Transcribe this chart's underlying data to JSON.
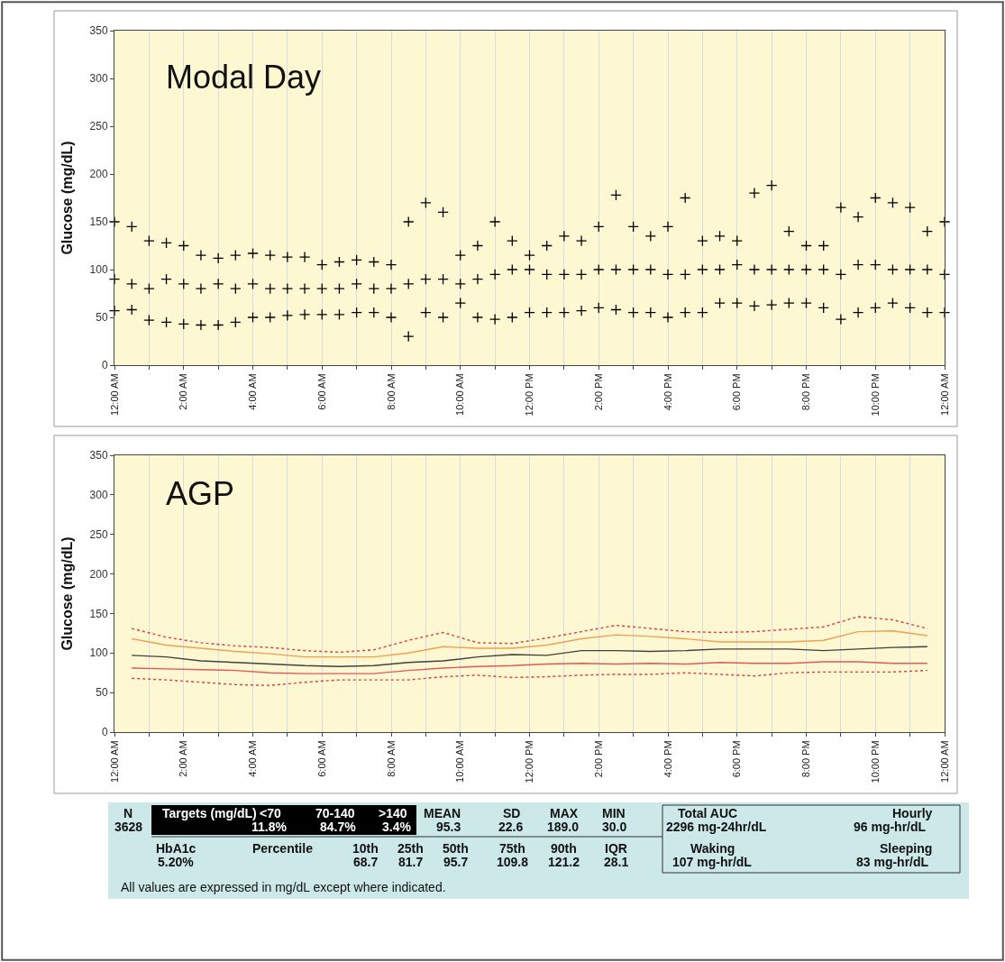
{
  "chart_data": [
    {
      "type": "scatter",
      "title": "Modal Day",
      "ylabel": "Glucose (mg/dL)",
      "marker": "cross",
      "grid": "x",
      "xlim": [
        0,
        24
      ],
      "ylim": [
        0,
        350
      ],
      "yticks": [
        0,
        50,
        100,
        150,
        200,
        250,
        300,
        350
      ],
      "xticks": [
        {
          "value": 0,
          "label": "12:00 AM"
        },
        {
          "value": 1,
          "label": null
        },
        {
          "value": 2,
          "label": "2:00 AM"
        },
        {
          "value": 3,
          "label": null
        },
        {
          "value": 4,
          "label": "4:00 AM"
        },
        {
          "value": 5,
          "label": null
        },
        {
          "value": 6,
          "label": "6:00 AM"
        },
        {
          "value": 7,
          "label": null
        },
        {
          "value": 8,
          "label": "8:00 AM"
        },
        {
          "value": 9,
          "label": null
        },
        {
          "value": 10,
          "label": "10:00 AM"
        },
        {
          "value": 11,
          "label": null
        },
        {
          "value": 12,
          "label": "12:00 PM"
        },
        {
          "value": 13,
          "label": null
        },
        {
          "value": 14,
          "label": "2:00 PM"
        },
        {
          "value": 15,
          "label": null
        },
        {
          "value": 16,
          "label": "4:00 PM"
        },
        {
          "value": 17,
          "label": null
        },
        {
          "value": 18,
          "label": "6:00 PM"
        },
        {
          "value": 19,
          "label": null
        },
        {
          "value": 20,
          "label": "8:00 PM"
        },
        {
          "value": 21,
          "label": null
        },
        {
          "value": 22,
          "label": "10:00 PM"
        },
        {
          "value": 23,
          "label": null
        },
        {
          "value": 24,
          "label": "12:00 AM"
        }
      ],
      "series": [
        {
          "color": "#000000",
          "x": [
            0,
            0,
            0,
            0.5,
            0.5,
            0.5,
            1,
            1,
            1,
            1.5,
            1.5,
            1.5,
            2,
            2,
            2,
            2.5,
            2.5,
            2.5,
            3,
            3,
            3,
            3.5,
            3.5,
            3.5,
            4,
            4,
            4,
            4.5,
            4.5,
            4.5,
            5,
            5,
            5,
            5.5,
            5.5,
            5.5,
            6,
            6,
            6,
            6.5,
            6.5,
            6.5,
            7,
            7,
            7,
            7.5,
            7.5,
            7.5,
            8,
            8,
            8,
            8.5,
            8.5,
            8.5,
            9,
            9,
            9,
            9.5,
            9.5,
            9.5,
            10,
            10,
            10,
            10.5,
            10.5,
            10.5,
            11,
            11,
            11,
            11.5,
            11.5,
            11.5,
            12,
            12,
            12,
            12.5,
            12.5,
            12.5,
            13,
            13,
            13,
            13.5,
            13.5,
            13.5,
            14,
            14,
            14,
            14.5,
            14.5,
            14.5,
            15,
            15,
            15,
            15.5,
            15.5,
            15.5,
            16,
            16,
            16,
            16.5,
            16.5,
            16.5,
            17,
            17,
            17,
            17.5,
            17.5,
            17.5,
            18,
            18,
            18,
            18.5,
            18.5,
            18.5,
            19,
            19,
            19,
            19.5,
            19.5,
            19.5,
            20,
            20,
            20,
            20.5,
            20.5,
            20.5,
            21,
            21,
            21,
            21.5,
            21.5,
            21.5,
            22,
            22,
            22,
            22.5,
            22.5,
            22.5,
            23,
            23,
            23,
            23.5,
            23.5,
            23.5,
            24,
            24,
            24
          ],
          "values": [
            57,
            90,
            150,
            58,
            85,
            145,
            47,
            80,
            130,
            45,
            90,
            128,
            43,
            85,
            125,
            42,
            80,
            115,
            42,
            85,
            112,
            45,
            80,
            115,
            50,
            85,
            117,
            50,
            80,
            115,
            52,
            80,
            113,
            53,
            80,
            113,
            53,
            80,
            105,
            53,
            80,
            108,
            55,
            85,
            110,
            55,
            80,
            108,
            50,
            80,
            105,
            30,
            85,
            150,
            55,
            90,
            170,
            50,
            90,
            160,
            65,
            85,
            115,
            50,
            90,
            125,
            48,
            95,
            150,
            50,
            100,
            130,
            55,
            100,
            115,
            55,
            95,
            125,
            55,
            95,
            135,
            57,
            95,
            130,
            60,
            100,
            145,
            58,
            100,
            178,
            55,
            100,
            145,
            55,
            100,
            135,
            50,
            95,
            145,
            55,
            95,
            175,
            55,
            100,
            130,
            65,
            100,
            135,
            65,
            105,
            130,
            62,
            100,
            180,
            63,
            100,
            188,
            65,
            100,
            140,
            65,
            100,
            125,
            60,
            100,
            125,
            48,
            95,
            165,
            55,
            105,
            155,
            60,
            105,
            175,
            65,
            100,
            170,
            60,
            100,
            165,
            55,
            100,
            140,
            55,
            95,
            150
          ]
        }
      ]
    },
    {
      "type": "line",
      "title": "AGP",
      "ylabel": "Glucose (mg/dL)",
      "marker": "none",
      "grid": "x",
      "xlim": [
        0,
        24
      ],
      "ylim": [
        0,
        350
      ],
      "yticks": [
        0,
        50,
        100,
        150,
        200,
        250,
        300,
        350
      ],
      "xticks": [
        {
          "value": 0,
          "label": "12:00 AM"
        },
        {
          "value": 1,
          "label": null
        },
        {
          "value": 2,
          "label": "2:00 AM"
        },
        {
          "value": 3,
          "label": null
        },
        {
          "value": 4,
          "label": "4:00 AM"
        },
        {
          "value": 5,
          "label": null
        },
        {
          "value": 6,
          "label": "6:00 AM"
        },
        {
          "value": 7,
          "label": null
        },
        {
          "value": 8,
          "label": "8:00 AM"
        },
        {
          "value": 9,
          "label": null
        },
        {
          "value": 10,
          "label": "10:00 AM"
        },
        {
          "value": 11,
          "label": null
        },
        {
          "value": 12,
          "label": "12:00 PM"
        },
        {
          "value": 13,
          "label": null
        },
        {
          "value": 14,
          "label": "2:00 PM"
        },
        {
          "value": 15,
          "label": null
        },
        {
          "value": 16,
          "label": "4:00 PM"
        },
        {
          "value": 17,
          "label": null
        },
        {
          "value": 18,
          "label": "6:00 PM"
        },
        {
          "value": 19,
          "label": null
        },
        {
          "value": 20,
          "label": "8:00 PM"
        },
        {
          "value": 21,
          "label": null
        },
        {
          "value": 22,
          "label": "10:00 PM"
        },
        {
          "value": 23,
          "label": null
        },
        {
          "value": 24,
          "label": "12:00 AM"
        }
      ],
      "x": [
        0.5,
        1.5,
        2.5,
        3.5,
        4.5,
        5.5,
        6.5,
        7.5,
        8.5,
        9.5,
        10.5,
        11.5,
        12.5,
        13.5,
        14.5,
        15.5,
        16.5,
        17.5,
        18.5,
        19.5,
        20.5,
        21.5,
        22.5,
        23.5
      ],
      "series": [
        {
          "color": "#e03a3a",
          "line_style": "dotted",
          "values": [
            131,
            120,
            113,
            109,
            107,
            103,
            101,
            104,
            116,
            126,
            113,
            112,
            119,
            127,
            135,
            131,
            127,
            126,
            127,
            130,
            133,
            146,
            142,
            131
          ]
        },
        {
          "color": "#f0a050",
          "line_style": "solid",
          "values": [
            118,
            110,
            106,
            102,
            99,
            95,
            95,
            95,
            100,
            108,
            106,
            106,
            110,
            118,
            123,
            121,
            118,
            114,
            114,
            114,
            116,
            127,
            128,
            122
          ]
        },
        {
          "color": "#404040",
          "line_style": "solid",
          "values": [
            97,
            95,
            90,
            88,
            86,
            84,
            83,
            84,
            88,
            90,
            95,
            98,
            97,
            103,
            103,
            102,
            103,
            105,
            105,
            105,
            103,
            105,
            107,
            108
          ]
        },
        {
          "color": "#e05a5a",
          "line_style": "solid",
          "values": [
            81,
            80,
            79,
            78,
            75,
            74,
            74,
            74,
            78,
            81,
            83,
            84,
            86,
            87,
            86,
            87,
            86,
            88,
            87,
            87,
            89,
            89,
            87,
            87
          ]
        },
        {
          "color": "#e03a3a",
          "line_style": "dotted",
          "values": [
            68,
            66,
            63,
            60,
            59,
            63,
            66,
            66,
            66,
            70,
            72,
            69,
            70,
            72,
            73,
            73,
            75,
            73,
            71,
            75,
            76,
            76,
            76,
            78
          ]
        }
      ]
    },
    {
      "type": "other",
      "annotations": [
        "N",
        "Targets (mg/dL)",
        "<70",
        "70-140",
        ">140",
        "MEAN",
        "SD",
        "MAX",
        "MIN",
        "Total AUC",
        "Hourly",
        "3628",
        "11.8%",
        "84.7%",
        "3.4%",
        "95.3",
        "22.6",
        "189.0",
        "30.0",
        "2296 mg-24hr/dL",
        "96 mg-hr/dL",
        "HbA1c",
        "Percentile",
        "10th",
        "25th",
        "50th",
        "75th",
        "90th",
        "IQR",
        "Waking",
        "Sleeping",
        "5.20%",
        "68.7",
        "81.7",
        "95.7",
        "109.8",
        "121.2",
        "28.1",
        "107 mg-hr/dL",
        "83 mg-hr/dL",
        "All values are expressed in mg/dL except where indicated."
      ]
    }
  ]
}
